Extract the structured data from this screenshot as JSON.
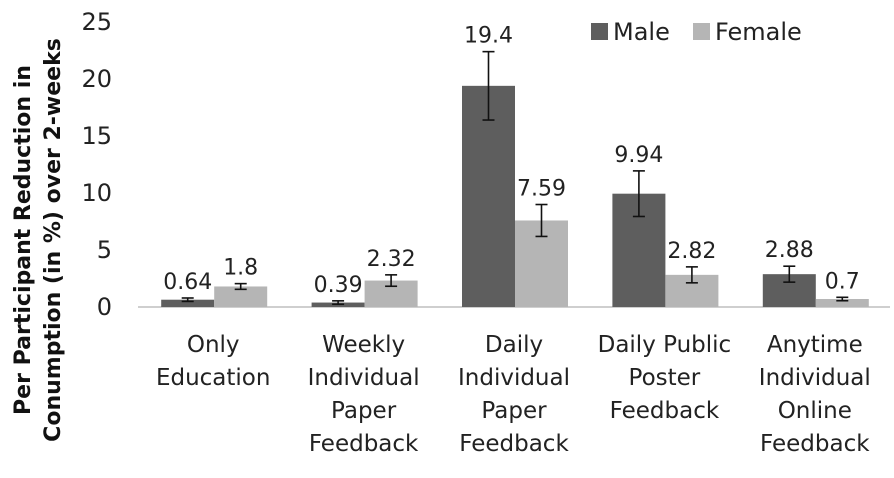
{
  "chart_data": {
    "type": "bar",
    "categories": [
      [
        "Only",
        "Education"
      ],
      [
        "Weekly",
        "Individual",
        "Paper",
        "Feedback"
      ],
      [
        "Daily",
        "Individual",
        "Paper",
        "Feedback"
      ],
      [
        "Daily Public",
        "Poster",
        "Feedback"
      ],
      [
        "Anytime",
        "Individual",
        "Online",
        "Feedback"
      ]
    ],
    "series": [
      {
        "name": "Male",
        "color": "#5e5e5e",
        "values": [
          0.64,
          0.39,
          19.4,
          9.94,
          2.88
        ],
        "labels": [
          "0.64",
          "0.39",
          "19.4",
          "9.94",
          "2.88"
        ],
        "error": [
          0.15,
          0.15,
          3.0,
          2.0,
          0.7
        ]
      },
      {
        "name": "Female",
        "color": "#b5b5b5",
        "values": [
          1.8,
          2.32,
          7.59,
          2.82,
          0.7
        ],
        "labels": [
          "1.8",
          "2.32",
          "7.59",
          "2.82",
          "0.7"
        ],
        "error": [
          0.25,
          0.5,
          1.4,
          0.7,
          0.15
        ]
      }
    ],
    "ylabel": [
      "Per Participant Reduction in",
      "Conumption (in %) over 2-weeks"
    ],
    "ylim": [
      0,
      25
    ],
    "yticks": [
      0,
      5,
      10,
      15,
      20,
      25
    ],
    "grid": false,
    "legend": "top-right"
  }
}
